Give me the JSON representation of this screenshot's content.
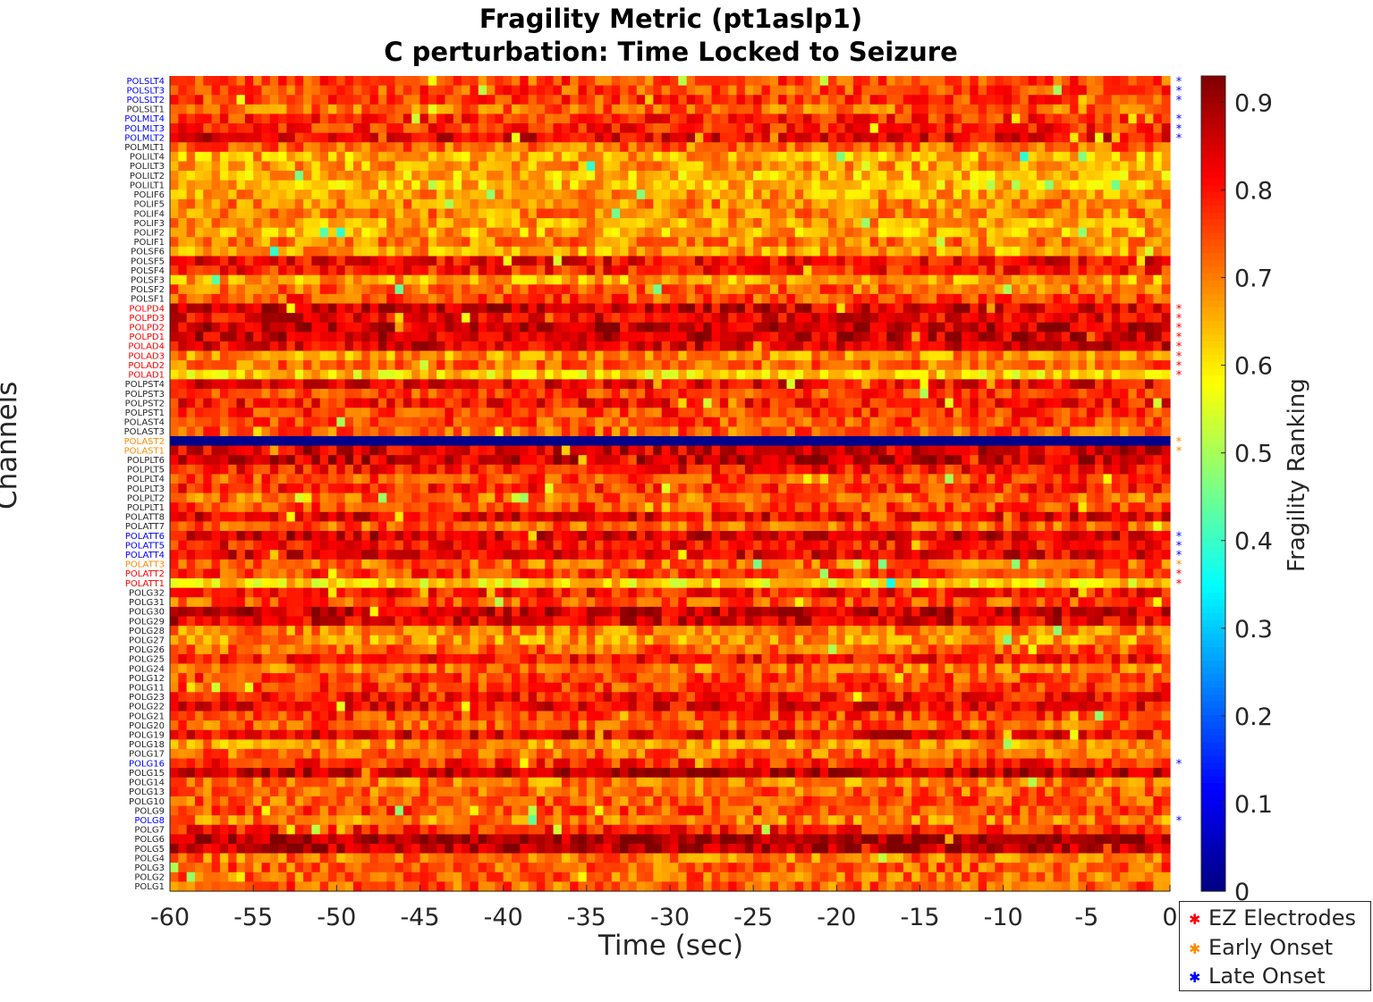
{
  "chart_data": {
    "type": "heatmap",
    "title": [
      "Fragility Metric (pt1aslp1)",
      "C perturbation:  Time Locked to Seizure"
    ],
    "xlabel": "Time (sec)",
    "ylabel": "Channels",
    "colorbar_label": "Fragility Ranking",
    "colormap": "jet",
    "clim": [
      0,
      0.93
    ],
    "colorbar_ticks": [
      "0",
      "0.1",
      "0.2",
      "0.3",
      "0.4",
      "0.5",
      "0.6",
      "0.7",
      "0.8",
      "0.9"
    ],
    "colorbar_tick_values": [
      0,
      0.1,
      0.2,
      0.3,
      0.4,
      0.5,
      0.6,
      0.7,
      0.8,
      0.9
    ],
    "x_range": [
      -60,
      0
    ],
    "x_ticks": [
      "-60",
      "-55",
      "-50",
      "-45",
      "-40",
      "-35",
      "-30",
      "-25",
      "-20",
      "-15",
      "-10",
      "-5",
      "0"
    ],
    "x_tick_values": [
      -60,
      -55,
      -50,
      -45,
      -40,
      -35,
      -30,
      -25,
      -20,
      -15,
      -10,
      -5,
      0
    ],
    "time_windows": 120,
    "channels": [
      "POLSLT4",
      "POLSLT3",
      "POLSLT2",
      "POLSLT1",
      "POLMLT4",
      "POLMLT3",
      "POLMLT2",
      "POLMLT1",
      "POLILT4",
      "POLILT3",
      "POLILT2",
      "POLILT1",
      "POLIF6",
      "POLIF5",
      "POLIF4",
      "POLIF3",
      "POLIF2",
      "POLIF1",
      "POLSF6",
      "POLSF5",
      "POLSF4",
      "POLSF3",
      "POLSF2",
      "POLSF1",
      "POLPD4",
      "POLPD3",
      "POLPD2",
      "POLPD1",
      "POLAD4",
      "POLAD3",
      "POLAD2",
      "POLAD1",
      "POLPST4",
      "POLPST3",
      "POLPST2",
      "POLPST1",
      "POLAST4",
      "POLAST3",
      "POLAST2",
      "POLAST1",
      "POLPLT6",
      "POLPLT5",
      "POLPLT4",
      "POLPLT3",
      "POLPLT2",
      "POLPLT1",
      "POLATT8",
      "POLATT7",
      "POLATT6",
      "POLATT5",
      "POLATT4",
      "POLATT3",
      "POLATT2",
      "POLATT1",
      "POLG32",
      "POLG31",
      "POLG30",
      "POLG29",
      "POLG28",
      "POLG27",
      "POLG26",
      "POLG25",
      "POLG24",
      "POLG12",
      "POLG11",
      "POLG23",
      "POLG22",
      "POLG21",
      "POLG20",
      "POLG19",
      "POLG18",
      "POLG17",
      "POLG16",
      "POLG15",
      "POLG14",
      "POLG13",
      "POLG10",
      "POLG9",
      "POLG8",
      "POLG7",
      "POLG6",
      "POLG5",
      "POLG4",
      "POLG3",
      "POLG2",
      "POLG1"
    ],
    "channel_means": [
      0.75,
      0.75,
      0.76,
      0.72,
      0.78,
      0.78,
      0.83,
      0.72,
      0.66,
      0.67,
      0.64,
      0.64,
      0.67,
      0.69,
      0.69,
      0.67,
      0.66,
      0.7,
      0.67,
      0.82,
      0.79,
      0.67,
      0.72,
      0.75,
      0.85,
      0.83,
      0.86,
      0.86,
      0.84,
      0.68,
      0.72,
      0.62,
      0.82,
      0.76,
      0.8,
      0.76,
      0.75,
      0.73,
      0.01,
      0.85,
      0.86,
      0.8,
      0.75,
      0.78,
      0.72,
      0.75,
      0.83,
      0.73,
      0.85,
      0.8,
      0.83,
      0.72,
      0.76,
      0.61,
      0.8,
      0.74,
      0.86,
      0.84,
      0.7,
      0.68,
      0.73,
      0.8,
      0.71,
      0.75,
      0.76,
      0.8,
      0.82,
      0.76,
      0.73,
      0.83,
      0.68,
      0.72,
      0.78,
      0.87,
      0.7,
      0.72,
      0.73,
      0.75,
      0.7,
      0.78,
      0.9,
      0.88,
      0.71,
      0.73,
      0.72,
      0.73
    ],
    "channel_groups": {
      "EZ Electrodes": [
        "POLPD4",
        "POLPD3",
        "POLPD2",
        "POLPD1",
        "POLAD4",
        "POLAD3",
        "POLAD2",
        "POLAD1",
        "POLATT2",
        "POLATT1"
      ],
      "Early Onset": [
        "POLAST2",
        "POLAST1",
        "POLATT3"
      ],
      "Late Onset": [
        "POLSLT4",
        "POLSLT3",
        "POLSLT2",
        "POLMLT4",
        "POLMLT3",
        "POLMLT2",
        "POLATT6",
        "POLATT5",
        "POLATT4",
        "POLG16",
        "POLG8"
      ]
    },
    "group_colors": {
      "EZ Electrodes": "#ff0000",
      "Early Onset": "#ff8c00",
      "Late Onset": "#0000ff",
      "default": "#262626"
    },
    "legend": [
      "EZ Electrodes",
      "Early Onset",
      "Late Onset"
    ],
    "legend_position": "bottom-right",
    "grid": false
  }
}
